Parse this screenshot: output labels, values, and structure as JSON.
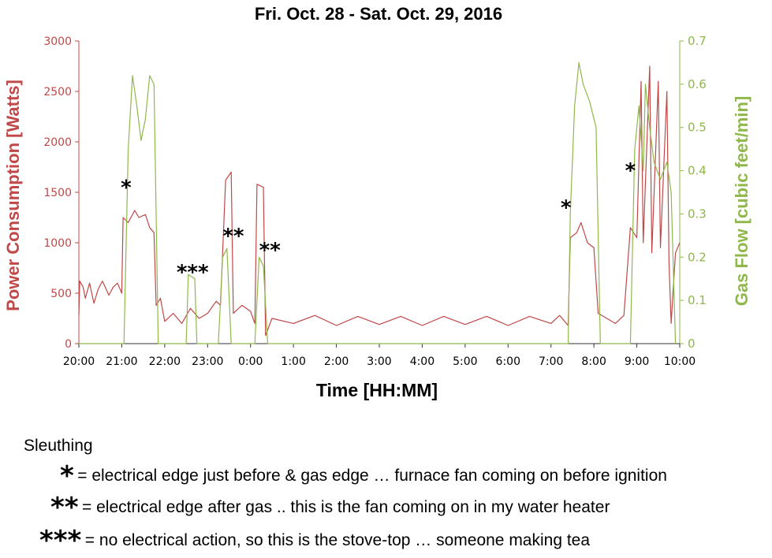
{
  "chart_data": {
    "type": "line",
    "title": "Fri. Oct. 28 - Sat. Oct. 29, 2016",
    "xlabel": "Time [HH:MM]",
    "ylabel_left": "Power Consumption [Watts]",
    "ylabel_right": "Gas Flow [cubic feet/min]",
    "x_ticks": [
      "20:00",
      "21:00",
      "22:00",
      "23:00",
      "0:00",
      "1:00",
      "2:00",
      "3:00",
      "4:00",
      "5:00",
      "6:00",
      "7:00",
      "8:00",
      "9:00",
      "10:00"
    ],
    "x_range_hours": [
      20,
      34
    ],
    "y_left_ticks": [
      0,
      500,
      1000,
      1500,
      2000,
      2500,
      3000
    ],
    "y_left_range": [
      0,
      3000
    ],
    "y_right_ticks": [
      "0",
      "0.1",
      "0.2",
      "0.3",
      "0.4",
      "0.5",
      "0.6",
      "0.7"
    ],
    "y_right_range": [
      0,
      0.7
    ],
    "colors": {
      "power": "#c04848",
      "gas": "#8fb84a",
      "axis_left": "#c04848",
      "axis_right": "#8fb84a",
      "marks": "#000000"
    },
    "series": [
      {
        "name": "Power Consumption",
        "axis": "left",
        "points": [
          [
            20.0,
            280
          ],
          [
            20.02,
            620
          ],
          [
            20.1,
            560
          ],
          [
            20.15,
            450
          ],
          [
            20.25,
            600
          ],
          [
            20.35,
            400
          ],
          [
            20.45,
            540
          ],
          [
            20.55,
            620
          ],
          [
            20.7,
            480
          ],
          [
            20.8,
            560
          ],
          [
            20.9,
            600
          ],
          [
            21.0,
            500
          ],
          [
            21.03,
            1250
          ],
          [
            21.15,
            1200
          ],
          [
            21.3,
            1320
          ],
          [
            21.4,
            1250
          ],
          [
            21.55,
            1280
          ],
          [
            21.65,
            1150
          ],
          [
            21.75,
            1100
          ],
          [
            21.8,
            380
          ],
          [
            21.9,
            450
          ],
          [
            22.0,
            220
          ],
          [
            22.2,
            300
          ],
          [
            22.4,
            200
          ],
          [
            22.6,
            350
          ],
          [
            22.8,
            250
          ],
          [
            23.0,
            300
          ],
          [
            23.2,
            420
          ],
          [
            23.3,
            380
          ],
          [
            23.42,
            1620
          ],
          [
            23.55,
            1700
          ],
          [
            23.6,
            300
          ],
          [
            23.8,
            380
          ],
          [
            24.0,
            320
          ],
          [
            24.1,
            200
          ],
          [
            24.15,
            1580
          ],
          [
            24.3,
            1550
          ],
          [
            24.35,
            80
          ],
          [
            24.5,
            250
          ],
          [
            25.0,
            200
          ],
          [
            25.5,
            280
          ],
          [
            26.0,
            180
          ],
          [
            26.5,
            270
          ],
          [
            27.0,
            190
          ],
          [
            27.5,
            270
          ],
          [
            28.0,
            180
          ],
          [
            28.5,
            270
          ],
          [
            29.0,
            190
          ],
          [
            29.5,
            270
          ],
          [
            30.0,
            180
          ],
          [
            30.5,
            270
          ],
          [
            31.0,
            200
          ],
          [
            31.2,
            280
          ],
          [
            31.4,
            180
          ],
          [
            31.45,
            1050
          ],
          [
            31.6,
            1100
          ],
          [
            31.7,
            1200
          ],
          [
            31.85,
            1000
          ],
          [
            32.0,
            950
          ],
          [
            32.1,
            300
          ],
          [
            32.3,
            250
          ],
          [
            32.5,
            200
          ],
          [
            32.7,
            280
          ],
          [
            32.85,
            1150
          ],
          [
            33.0,
            1050
          ],
          [
            33.1,
            2600
          ],
          [
            33.15,
            1000
          ],
          [
            33.3,
            2750
          ],
          [
            33.35,
            900
          ],
          [
            33.5,
            2600
          ],
          [
            33.55,
            950
          ],
          [
            33.7,
            2500
          ],
          [
            33.75,
            800
          ],
          [
            33.8,
            200
          ],
          [
            33.9,
            900
          ],
          [
            34.0,
            1000
          ]
        ]
      },
      {
        "name": "Gas Flow",
        "axis": "right",
        "points": [
          [
            20.0,
            0
          ],
          [
            21.05,
            0
          ],
          [
            21.15,
            0.45
          ],
          [
            21.25,
            0.62
          ],
          [
            21.35,
            0.55
          ],
          [
            21.45,
            0.47
          ],
          [
            21.55,
            0.52
          ],
          [
            21.65,
            0.62
          ],
          [
            21.75,
            0.6
          ],
          [
            21.85,
            0
          ],
          [
            22.5,
            0
          ],
          [
            22.55,
            0.16
          ],
          [
            22.7,
            0.15
          ],
          [
            22.75,
            0
          ],
          [
            23.25,
            0
          ],
          [
            23.35,
            0.2
          ],
          [
            23.45,
            0.22
          ],
          [
            23.55,
            0
          ],
          [
            24.1,
            0
          ],
          [
            24.2,
            0.2
          ],
          [
            24.3,
            0.18
          ],
          [
            24.4,
            0
          ],
          [
            31.4,
            0
          ],
          [
            31.45,
            0.3
          ],
          [
            31.55,
            0.55
          ],
          [
            31.65,
            0.65
          ],
          [
            31.75,
            0.6
          ],
          [
            31.9,
            0.56
          ],
          [
            32.05,
            0.5
          ],
          [
            32.15,
            0
          ],
          [
            32.85,
            0
          ],
          [
            32.95,
            0.45
          ],
          [
            33.05,
            0.55
          ],
          [
            33.15,
            0.4
          ],
          [
            33.2,
            0.6
          ],
          [
            33.3,
            0.5
          ],
          [
            33.4,
            0.42
          ],
          [
            33.55,
            0.38
          ],
          [
            33.7,
            0.42
          ],
          [
            33.8,
            0.35
          ],
          [
            33.9,
            0
          ]
        ]
      }
    ],
    "annotations": [
      {
        "text": "*",
        "x": 21.1,
        "y_watts": 1480
      },
      {
        "text": "***",
        "x": 22.65,
        "y_watts": 640
      },
      {
        "text": "**",
        "x": 23.6,
        "y_watts": 1000
      },
      {
        "text": "**",
        "x": 24.45,
        "y_watts": 860
      },
      {
        "text": "*",
        "x": 31.35,
        "y_watts": 1280
      },
      {
        "text": "*",
        "x": 32.85,
        "y_watts": 1650
      }
    ]
  },
  "legend": {
    "title": "Sleuthing",
    "items": [
      {
        "mark": "*",
        "text": "= electrical edge just before & gas edge … furnace fan coming on before ignition"
      },
      {
        "mark": "**",
        "text": "= electrical edge after gas .. this is the fan coming on in my water heater"
      },
      {
        "mark": "***",
        "text": "= no electrical action, so this is the stove-top … someone making tea"
      }
    ]
  }
}
